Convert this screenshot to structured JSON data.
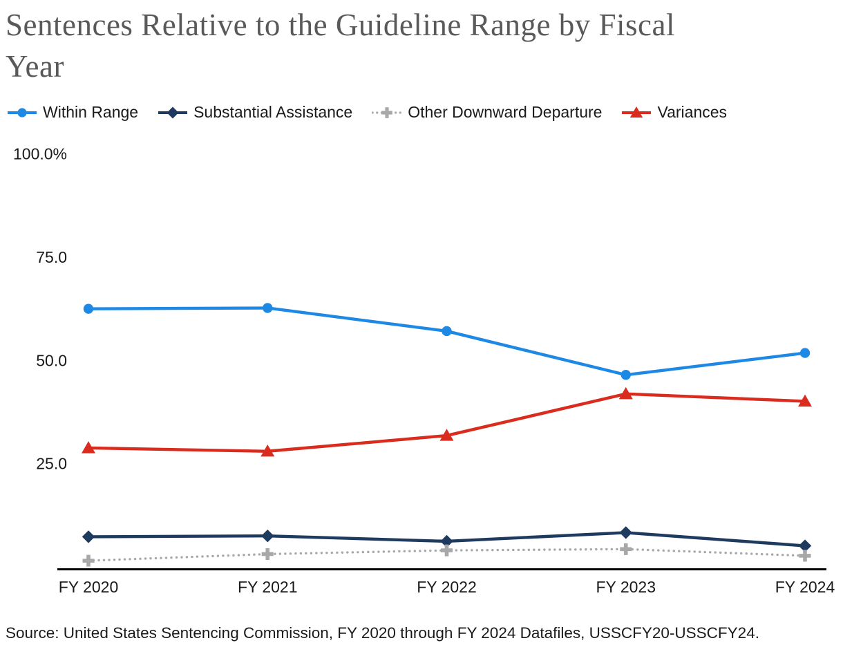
{
  "title_lines": [
    "Sentences Relative to the Guideline Range by Fiscal",
    "Year"
  ],
  "source_note": "Source: United States Sentencing Commission, FY 2020 through FY 2024 Datafiles, USSCFY20-USSCFY24.",
  "colors": {
    "title_text": "#595959",
    "body_text": "#1a1a1a",
    "axis_line": "#000000",
    "within_range": "#1e88e5",
    "substantial_assistance": "#1f3a5f",
    "other_downward_departure": "#a8a8a8",
    "variances": "#d92b1e"
  },
  "chart_data": {
    "type": "line",
    "title": "Sentences Relative to the Guideline Range by Fiscal Year",
    "categories": [
      "FY 2020",
      "FY 2021",
      "FY 2022",
      "FY 2023",
      "FY 2024"
    ],
    "y_axis": {
      "min": 0,
      "max": 100,
      "ticks": [
        {
          "label": "100.0%",
          "value": 100
        },
        {
          "label": "75.0",
          "value": 75
        },
        {
          "label": "50.0",
          "value": 50
        },
        {
          "label": "25.0",
          "value": 25
        }
      ]
    },
    "grid": false,
    "legend_position": "top",
    "series": [
      {
        "name": "Within Range",
        "marker": "circle",
        "line_style": "solid",
        "color_key": "within_range",
        "values": [
          62.4,
          62.6,
          57.0,
          46.4,
          51.7
        ]
      },
      {
        "name": "Substantial Assistance",
        "marker": "diamond",
        "line_style": "solid",
        "color_key": "substantial_assistance",
        "values": [
          7.2,
          7.4,
          6.1,
          8.2,
          5.0
        ]
      },
      {
        "name": "Other Downward Departure",
        "marker": "plus",
        "line_style": "dotted",
        "color_key": "other_downward_departure",
        "values": [
          1.4,
          3.0,
          3.9,
          4.2,
          2.6
        ]
      },
      {
        "name": "Variances",
        "marker": "triangle",
        "line_style": "solid",
        "color_key": "variances",
        "values": [
          28.7,
          27.9,
          31.7,
          41.8,
          40.0
        ]
      }
    ]
  }
}
